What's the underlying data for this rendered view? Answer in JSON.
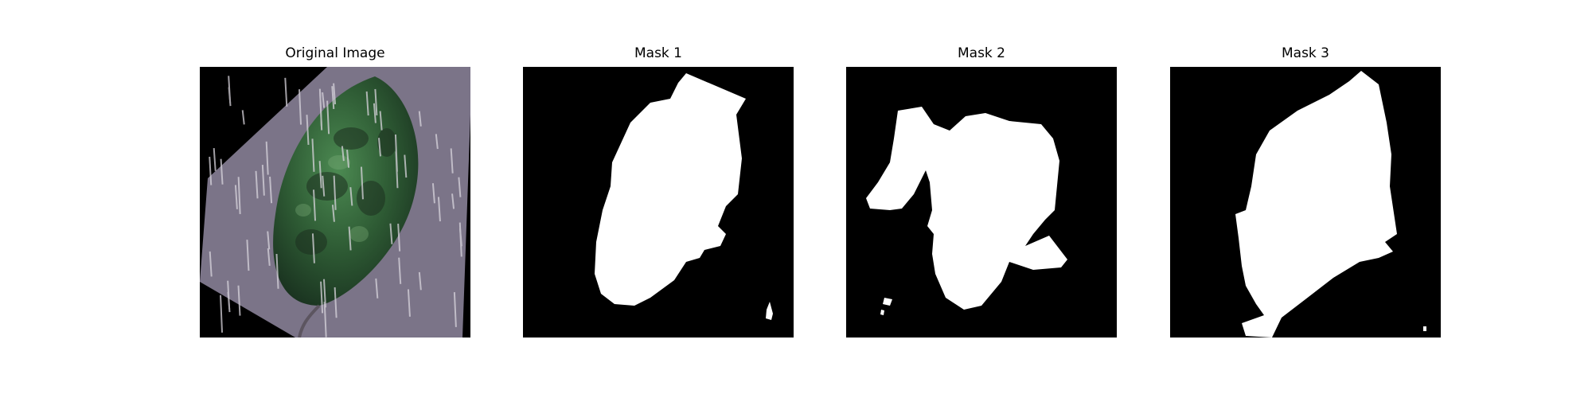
{
  "panels": [
    {
      "title": "Original Image",
      "kind": "photo"
    },
    {
      "title": "Mask 1",
      "kind": "mask"
    },
    {
      "title": "Mask 2",
      "kind": "mask"
    },
    {
      "title": "Mask 3",
      "kind": "mask"
    }
  ],
  "colors": {
    "mask_background": "#000000",
    "mask_foreground": "#ffffff",
    "photo_background": "#7b7488",
    "leaf_dark": "#1f3a24",
    "leaf_light": "#3f7a45"
  }
}
